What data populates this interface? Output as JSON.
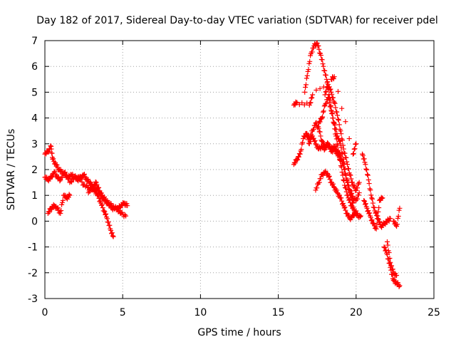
{
  "chart_data": {
    "type": "scatter",
    "title": "Day 182 of 2017, Sidereal Day-to-day VTEC variation (SDTVAR) for receiver pdel",
    "xlabel": "GPS time / hours",
    "ylabel": "SDTVAR / TECUs",
    "xlim": [
      0,
      25
    ],
    "ylim": [
      -3,
      7
    ],
    "xticks": [
      "0",
      "5",
      "10",
      "15",
      "20",
      "25"
    ],
    "yticks": [
      "-3",
      "-2",
      "-1",
      "0",
      "1",
      "2",
      "3",
      "4",
      "5",
      "6",
      "7"
    ],
    "grid": true,
    "marker": "plus",
    "series": [
      {
        "name": "SDTVAR",
        "color": "#ff0000",
        "segments": [
          {
            "x": [
              0.0,
              0.2,
              0.4,
              0.5,
              0.7,
              0.9,
              1.1,
              1.3,
              1.5,
              1.7,
              1.9,
              2.1,
              2.3,
              2.5,
              2.7,
              2.9,
              3.1,
              3.3,
              3.5,
              3.7,
              3.9,
              4.1,
              4.3,
              4.5,
              4.7,
              4.9,
              5.1,
              5.3
            ],
            "y": [
              2.6,
              2.7,
              2.9,
              2.4,
              2.2,
              2.0,
              1.9,
              1.8,
              1.7,
              1.8,
              1.7,
              1.6,
              1.7,
              1.8,
              1.6,
              1.5,
              1.3,
              1.5,
              1.1,
              0.9,
              0.8,
              0.7,
              0.6,
              0.5,
              0.5,
              0.6,
              0.7,
              0.6
            ]
          },
          {
            "x": [
              0.0,
              0.2,
              0.4,
              0.6,
              0.8,
              1.0,
              1.3,
              1.6,
              1.9,
              2.2,
              2.5,
              2.8,
              3.1,
              3.4,
              3.7,
              4.0,
              4.3,
              4.6,
              4.9,
              5.2
            ],
            "y": [
              1.7,
              1.6,
              1.7,
              1.9,
              1.7,
              1.6,
              1.9,
              1.5,
              1.7,
              1.7,
              1.4,
              1.3,
              1.2,
              1.3,
              1.0,
              0.7,
              0.5,
              0.5,
              0.3,
              0.2
            ]
          },
          {
            "x": [
              0.2,
              0.4,
              0.6,
              0.8,
              1.0,
              1.2,
              1.4,
              1.6
            ],
            "y": [
              0.3,
              0.5,
              0.6,
              0.5,
              0.3,
              1.0,
              0.9,
              1.0
            ]
          },
          {
            "x": [
              2.8,
              3.0,
              3.2,
              3.4,
              3.6,
              3.8,
              4.0,
              4.2,
              4.4
            ],
            "y": [
              1.1,
              1.3,
              1.2,
              1.0,
              0.7,
              0.4,
              0.1,
              -0.3,
              -0.6
            ]
          },
          {
            "x": [
              16.0,
              16.2,
              16.4,
              16.6,
              16.8,
              17.0,
              17.2,
              17.4,
              17.6,
              17.8,
              18.0,
              18.2,
              18.4,
              18.6,
              18.8,
              19.0
            ],
            "y": [
              2.2,
              2.4,
              2.6,
              3.2,
              3.4,
              3.0,
              3.3,
              3.0,
              2.8,
              2.9,
              2.8,
              3.0,
              2.7,
              2.8,
              2.6,
              2.4
            ]
          },
          {
            "x": [
              16.7,
              16.9,
              17.1,
              17.3,
              17.5,
              17.7,
              17.9,
              18.1,
              18.3,
              18.5,
              18.7,
              18.9,
              19.1,
              19.3,
              19.5,
              19.7,
              19.9,
              20.1,
              20.3
            ],
            "y": [
              5.0,
              5.8,
              6.5,
              6.8,
              6.9,
              6.5,
              6.0,
              5.5,
              4.8,
              4.0,
              3.3,
              2.6,
              1.9,
              1.3,
              0.9,
              0.6,
              0.4,
              0.2,
              0.2
            ]
          },
          {
            "x": [
              18.0,
              18.2,
              18.4,
              18.6,
              18.8,
              19.0,
              19.2,
              19.4,
              19.6,
              19.8,
              20.0,
              20.2
            ],
            "y": [
              4.9,
              5.3,
              5.0,
              4.6,
              4.1,
              3.5,
              2.8,
              2.3,
              1.8,
              1.4,
              1.2,
              1.5
            ]
          },
          {
            "x": [
              17.6,
              17.8,
              18.0,
              18.2,
              18.4,
              18.6,
              18.8,
              19.0,
              19.2,
              19.4,
              19.6,
              19.8,
              20.0,
              20.2
            ],
            "y": [
              3.8,
              4.0,
              4.5,
              4.8,
              4.3,
              3.8,
              3.3,
              3.0,
              2.3,
              1.6,
              1.2,
              0.9,
              0.8,
              1.1
            ]
          },
          {
            "x": [
              16.8,
              17.0,
              17.2,
              17.4,
              17.6,
              17.8,
              18.0,
              18.2,
              18.4,
              18.6,
              18.8,
              19.0,
              19.2,
              19.4,
              19.6,
              19.8
            ],
            "y": [
              3.4,
              3.2,
              3.5,
              3.8,
              3.6,
              3.1,
              2.9,
              3.0,
              2.8,
              2.9,
              2.7,
              2.5,
              2.1,
              1.6,
              1.1,
              0.7
            ]
          },
          {
            "x": [
              17.4,
              17.6,
              17.8,
              18.0,
              18.2,
              18.4,
              18.6,
              18.8,
              19.0,
              19.2,
              19.4,
              19.6,
              19.8,
              20.0
            ],
            "y": [
              1.2,
              1.5,
              1.8,
              1.9,
              1.8,
              1.5,
              1.3,
              1.1,
              0.9,
              0.6,
              0.3,
              0.1,
              0.2,
              0.4
            ]
          },
          {
            "x": [
              16.0,
              16.2,
              17.0,
              17.2,
              18.4,
              18.6,
              19.8,
              20.0
            ],
            "y": [
              4.5,
              4.6,
              4.5,
              4.9,
              5.5,
              5.6,
              2.6,
              3.0
            ]
          },
          {
            "x": [
              20.4,
              20.6,
              20.8,
              21.0,
              21.2,
              21.4,
              21.6,
              21.8,
              22.0,
              22.2
            ],
            "y": [
              2.6,
              2.2,
              1.6,
              0.9,
              0.4,
              0.1,
              -0.2,
              -0.1,
              0.0,
              0.1
            ]
          },
          {
            "x": [
              20.5,
              20.7,
              20.9,
              21.1,
              21.3,
              21.5,
              21.7
            ],
            "y": [
              0.8,
              0.5,
              0.2,
              -0.1,
              -0.3,
              0.8,
              0.9
            ]
          },
          {
            "x": [
              21.8,
              22.0,
              22.2,
              22.4,
              22.6,
              22.8
            ],
            "y": [
              -1.0,
              -1.3,
              -1.8,
              -2.3,
              -2.4,
              -2.5
            ]
          },
          {
            "x": [
              22.0,
              22.2,
              22.4,
              22.6
            ],
            "y": [
              -0.8,
              -1.6,
              -2.0,
              -2.1
            ]
          },
          {
            "x": [
              22.4,
              22.6,
              22.8
            ],
            "y": [
              0.0,
              -0.2,
              0.5
            ]
          }
        ]
      }
    ]
  }
}
